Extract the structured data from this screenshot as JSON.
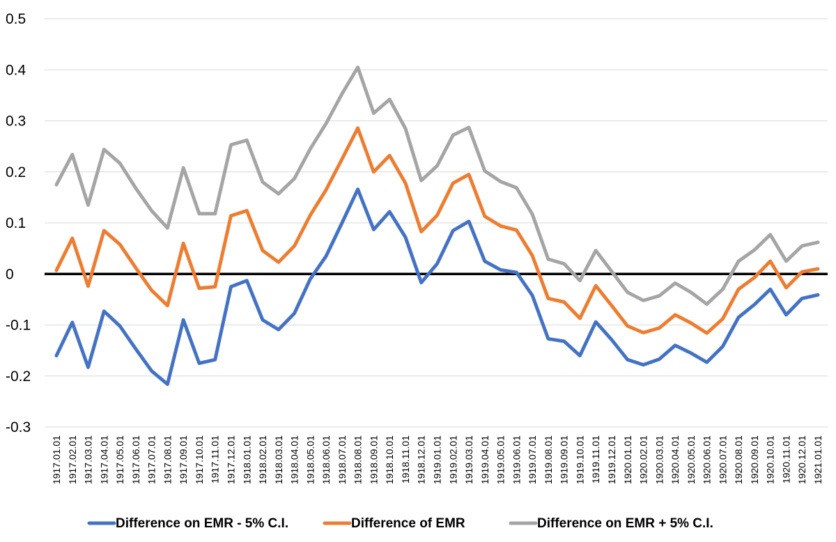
{
  "chart_data": {
    "type": "line",
    "title": "",
    "xlabel": "",
    "ylabel": "",
    "ylim": [
      -0.3,
      0.5
    ],
    "yticks": [
      "0.5",
      "0.4",
      "0.3",
      "0.2",
      "0.1",
      "0",
      "-0.1",
      "-0.2",
      "-0.3"
    ],
    "grid": true,
    "legend_position": "bottom",
    "zero_line": true,
    "categories": [
      "1917.01.01",
      "1917.02.01",
      "1917.03.01",
      "1917.04.01",
      "1917.05.01",
      "1917.06.01",
      "1917.07.01",
      "1917.08.01",
      "1917.09.01",
      "1917.10.01",
      "1917.11.01",
      "1917.12.01",
      "1918.01.01",
      "1918.02.01",
      "1918.03.01",
      "1918.04.01",
      "1918.05.01",
      "1918.06.01",
      "1918.07.01",
      "1918.08.01",
      "1918.09.01",
      "1918.10.01",
      "1918.11.01",
      "1918.12.01",
      "1919.01.01",
      "1919.02.01",
      "1919.03.01",
      "1919.04.01",
      "1919.05.01",
      "1919.06.01",
      "1919.07.01",
      "1919.08.01",
      "1919.09.01",
      "1919.10.01",
      "1919.11.01",
      "1919.12.01",
      "1920.01.01",
      "1920.02.01",
      "1920.03.01",
      "1920.04.01",
      "1920.05.01",
      "1920.06.01",
      "1920.07.01",
      "1920.08.01",
      "1920.09.01",
      "1920.10.01",
      "1920.11.01",
      "1920.12.01",
      "1921.01.01"
    ],
    "series": [
      {
        "name": "Difference on EMR - 5% C.I.",
        "color": "#4472C4",
        "values": [
          -0.16,
          -0.095,
          -0.183,
          -0.073,
          -0.102,
          -0.147,
          -0.19,
          -0.216,
          -0.09,
          -0.175,
          -0.168,
          -0.025,
          -0.013,
          -0.09,
          -0.109,
          -0.077,
          -0.01,
          0.035,
          0.1,
          0.166,
          0.087,
          0.122,
          0.072,
          -0.017,
          0.02,
          0.085,
          0.103,
          0.025,
          0.008,
          0.003,
          -0.042,
          -0.127,
          -0.132,
          -0.16,
          -0.094,
          -0.129,
          -0.168,
          -0.178,
          -0.167,
          -0.14,
          -0.155,
          -0.173,
          -0.142,
          -0.085,
          -0.06,
          -0.03,
          -0.08,
          -0.048,
          -0.041
        ]
      },
      {
        "name": "Difference of EMR",
        "color": "#ED7D31",
        "values": [
          0.007,
          0.07,
          -0.024,
          0.085,
          0.058,
          0.012,
          -0.032,
          -0.062,
          0.06,
          -0.028,
          -0.025,
          0.114,
          0.124,
          0.046,
          0.023,
          0.055,
          0.115,
          0.165,
          0.225,
          0.286,
          0.2,
          0.232,
          0.178,
          0.083,
          0.115,
          0.178,
          0.195,
          0.113,
          0.094,
          0.086,
          0.036,
          -0.048,
          -0.055,
          -0.087,
          -0.023,
          -0.062,
          -0.102,
          -0.115,
          -0.106,
          -0.08,
          -0.096,
          -0.116,
          -0.088,
          -0.03,
          -0.007,
          0.025,
          -0.027,
          0.004,
          0.01
        ]
      },
      {
        "name": "Difference on EMR + 5% C.I.",
        "color": "#A5A5A5",
        "values": [
          0.175,
          0.234,
          0.135,
          0.244,
          0.217,
          0.168,
          0.124,
          0.09,
          0.208,
          0.118,
          0.118,
          0.253,
          0.262,
          0.18,
          0.157,
          0.187,
          0.245,
          0.295,
          0.353,
          0.405,
          0.315,
          0.342,
          0.285,
          0.183,
          0.212,
          0.272,
          0.287,
          0.202,
          0.181,
          0.169,
          0.117,
          0.029,
          0.02,
          -0.013,
          0.046,
          0.005,
          -0.036,
          -0.052,
          -0.043,
          -0.018,
          -0.036,
          -0.059,
          -0.03,
          0.025,
          0.047,
          0.077,
          0.025,
          0.055,
          0.062
        ]
      }
    ]
  }
}
